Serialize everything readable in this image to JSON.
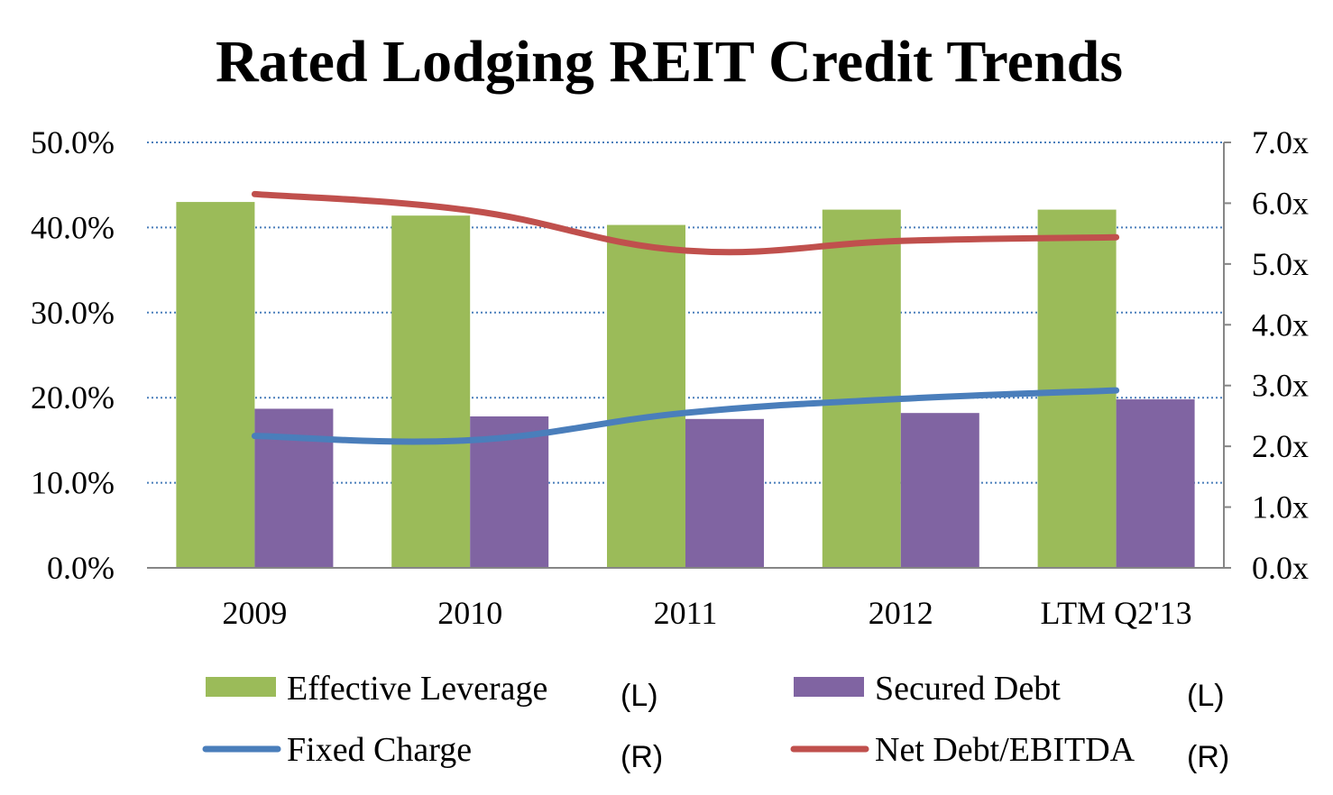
{
  "chart_data": {
    "type": "bar",
    "title": "Rated Lodging REIT Credit Trends",
    "categories": [
      "2009",
      "2010",
      "2011",
      "2012",
      "LTM Q2'13"
    ],
    "y_left": {
      "ylim": [
        0,
        50
      ],
      "ticks": [
        "0.0%",
        "10.0%",
        "20.0%",
        "30.0%",
        "40.0%",
        "50.0%"
      ]
    },
    "y_right": {
      "ylim": [
        0,
        7
      ],
      "ticks": [
        "0.0x",
        "1.0x",
        "2.0x",
        "3.0x",
        "4.0x",
        "5.0x",
        "6.0x",
        "7.0x"
      ]
    },
    "grid": true,
    "legend_position": "bottom",
    "series": [
      {
        "name": "Effective Leverage",
        "axis_tag": "(L)",
        "kind": "bar",
        "axis": "left",
        "color": "#9bbb59",
        "values": [
          43.0,
          41.4,
          40.3,
          42.1,
          42.1
        ]
      },
      {
        "name": "Secured Debt",
        "axis_tag": "(L)",
        "kind": "bar",
        "axis": "left",
        "color": "#8064a2",
        "values": [
          18.7,
          17.8,
          17.5,
          18.2,
          19.8
        ]
      },
      {
        "name": "Fixed Charge",
        "axis_tag": "(R)",
        "kind": "line",
        "axis": "right",
        "color": "#4a7ebb",
        "values": [
          2.17,
          2.1,
          2.55,
          2.78,
          2.92
        ]
      },
      {
        "name": "Net Debt/EBITDA",
        "axis_tag": "(R)",
        "kind": "line",
        "axis": "right",
        "color": "#c0504d",
        "values": [
          6.15,
          5.88,
          5.22,
          5.38,
          5.44
        ]
      }
    ]
  }
}
